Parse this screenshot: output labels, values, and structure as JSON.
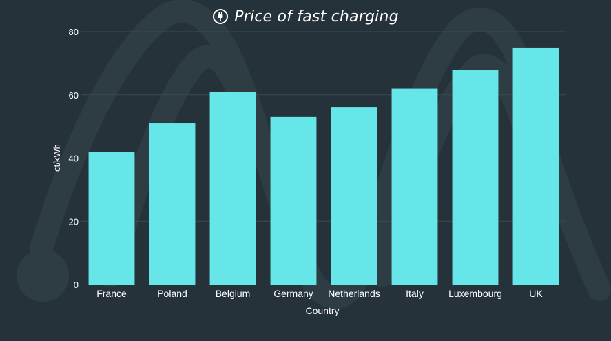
{
  "colors": {
    "background": "#263239",
    "bar": "#67e6ea",
    "grid": "#3b4a51",
    "text": "#ffffff",
    "watermark": "#2e3c43"
  },
  "icons": {
    "title_icon": "plug-icon"
  },
  "chart_data": {
    "type": "bar",
    "title": "Price of fast charging",
    "xlabel": "Country",
    "ylabel": "ct/kWh",
    "categories": [
      "France",
      "Poland",
      "Belgium",
      "Germany",
      "Netherlands",
      "Italy",
      "Luxembourg",
      "UK"
    ],
    "values": [
      42,
      51,
      61,
      53,
      56,
      62,
      68,
      75
    ],
    "ylim": [
      0,
      80
    ],
    "yticks": [
      0,
      20,
      40,
      60,
      80
    ],
    "grid": true,
    "legend": "none"
  }
}
